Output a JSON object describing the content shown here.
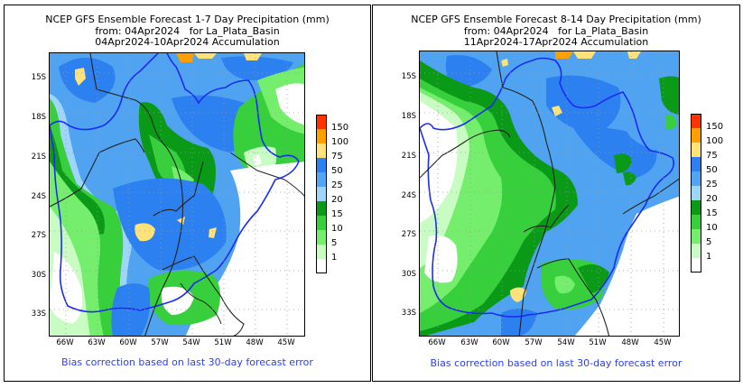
{
  "panels": [
    {
      "title_line1": "NCEP GFS Ensemble Forecast 1-7 Day Precipitation (mm)",
      "title_line2": "from: 04Apr2024   for La_Plata_Basin",
      "title_line3": "04Apr2024-10Apr2024 Accumulation",
      "footer": "Bias correction based on last 30-day forecast error"
    },
    {
      "title_line1": "NCEP GFS Ensemble Forecast 8-14 Day Precipitation (mm)",
      "title_line2": "from: 04Apr2024   for La_Plata_Basin",
      "title_line3": "11Apr2024-17Apr2024 Accumulation",
      "footer": "Bias correction based on last 30-day forecast error"
    }
  ],
  "axes": {
    "lat_labels": [
      "15S",
      "18S",
      "21S",
      "24S",
      "27S",
      "30S",
      "33S"
    ],
    "lon_labels": [
      "66W",
      "63W",
      "60W",
      "57W",
      "54W",
      "51W",
      "48W",
      "45W"
    ]
  },
  "legend": {
    "levels": [
      "150",
      "100",
      "75",
      "50",
      "25",
      "20",
      "15",
      "10",
      "5",
      "1"
    ],
    "colors": [
      "#ff3300",
      "#ffa000",
      "#ffe27a",
      "#2d80f0",
      "#50a6f5",
      "#9fd5fb",
      "#0b9a18",
      "#37cf3c",
      "#76ee6d",
      "#c8fcc2",
      "#ffffff"
    ]
  },
  "colors": {
    "basin_outline": "#1c2cf0",
    "border": "#000000",
    "footer_text": "#2a3ff2"
  }
}
